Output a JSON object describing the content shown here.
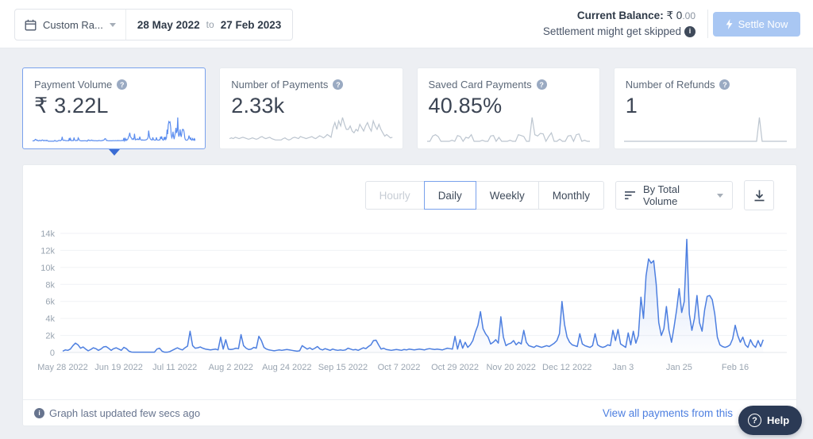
{
  "topbar": {
    "range_preset": "Custom Ra...",
    "date_from": "28 May 2022",
    "to_word": "to",
    "date_to": "27 Feb 2023",
    "current_balance_label": "Current Balance:",
    "balance_whole": "₹ 0",
    "balance_decimals": ".00",
    "settlement_note": "Settlement might get skipped",
    "settle_button": "Settle Now"
  },
  "cards": [
    {
      "label": "Payment Volume",
      "value": "₹ 3.22L",
      "selected": true,
      "spark_color": "#5b8def",
      "spark": "main"
    },
    {
      "label": "Number of Payments",
      "value": "2.33k",
      "selected": false,
      "spark_color": "#bcc5cf",
      "spark": [
        8,
        10,
        8,
        12,
        10,
        8,
        10,
        12,
        10,
        8,
        6,
        8,
        10,
        8,
        6,
        8,
        12,
        14,
        10,
        8,
        10,
        12,
        8,
        6,
        4,
        4,
        4,
        4,
        8,
        10,
        6,
        4,
        6,
        10,
        12,
        10,
        8,
        14,
        12,
        10,
        8,
        10,
        12,
        14,
        10,
        8,
        12,
        16,
        14,
        10,
        14,
        20,
        16,
        12,
        40,
        55,
        35,
        60,
        45,
        70,
        50,
        35,
        35,
        45,
        30,
        25,
        35,
        30,
        50,
        40,
        30,
        45,
        55,
        40,
        30,
        60,
        45,
        35,
        50,
        35,
        25,
        15,
        20,
        15,
        10,
        12
      ]
    },
    {
      "label": "Saved Card Payments",
      "value": "40.85%",
      "selected": false,
      "spark_color": "#bcc5cf",
      "spark": [
        0,
        0,
        20,
        25,
        18,
        0,
        0,
        0,
        0,
        4,
        0,
        22,
        18,
        0,
        15,
        12,
        25,
        0,
        0,
        0,
        4,
        0,
        0,
        20,
        22,
        0,
        15,
        0,
        0,
        0,
        4,
        0,
        0,
        25,
        22,
        18,
        0,
        0,
        90,
        25,
        20,
        30,
        28,
        0,
        18,
        32,
        0,
        0,
        8,
        0,
        0,
        20,
        22,
        0,
        25,
        28,
        0,
        4,
        0,
        0
      ]
    },
    {
      "label": "Number of Refunds",
      "value": "1",
      "selected": false,
      "spark_color": "#bcc5cf",
      "spark": [
        0,
        0,
        0,
        0,
        0,
        0,
        0,
        0,
        0,
        0,
        0,
        0,
        0,
        0,
        0,
        0,
        0,
        0,
        0,
        0,
        0,
        0,
        0,
        0,
        0,
        0,
        0,
        0,
        0,
        0,
        0,
        0,
        0,
        0,
        0,
        0,
        0,
        0,
        0,
        0,
        0,
        0,
        0,
        0,
        0,
        0,
        0,
        0,
        0,
        100,
        0,
        0,
        0,
        0,
        0,
        0,
        0,
        0,
        0,
        0
      ]
    }
  ],
  "controls": {
    "tabs": [
      {
        "label": "Hourly",
        "state": "disabled"
      },
      {
        "label": "Daily",
        "state": "selected"
      },
      {
        "label": "Weekly",
        "state": "normal"
      },
      {
        "label": "Monthly",
        "state": "normal"
      }
    ],
    "sort_dropdown": "By Total Volume"
  },
  "chart_data": {
    "type": "area",
    "title": "",
    "xlabel": "",
    "ylabel": "",
    "granularity": "Daily",
    "grid": true,
    "legend": "none",
    "ylim": [
      0,
      14000
    ],
    "y_tick_labels": [
      "0",
      "2k",
      "4k",
      "6k",
      "8k",
      "10k",
      "12k",
      "14k"
    ],
    "x_tick_labels": [
      "May 28 2022",
      "Jun 19 2022",
      "Jul 11 2022",
      "Aug 2 2022",
      "Aug 24 2022",
      "Sep 15 2022",
      "Oct 7 2022",
      "Oct 29 2022",
      "Nov 20 2022",
      "Dec 12 2022",
      "Jan 3",
      "Jan 25",
      "Feb 16"
    ],
    "x_tick_interval_days": 22,
    "line_color": "#4d7fe0",
    "series": [
      {
        "name": "Payment Volume",
        "values": [
          150,
          300,
          250,
          400,
          800,
          1100,
          900,
          500,
          650,
          400,
          200,
          350,
          550,
          450,
          250,
          400,
          650,
          700,
          500,
          250,
          450,
          550,
          400,
          250,
          600,
          450,
          150,
          50,
          30,
          30,
          30,
          30,
          30,
          30,
          30,
          30,
          30,
          400,
          500,
          150,
          30,
          30,
          100,
          250,
          400,
          550,
          400,
          300,
          550,
          750,
          2500,
          800,
          500,
          550,
          650,
          500,
          400,
          350,
          300,
          350,
          400,
          300,
          1800,
          400,
          1500,
          400,
          350,
          400,
          500,
          450,
          2100,
          800,
          500,
          350,
          400,
          600,
          500,
          1900,
          1400,
          600,
          400,
          300,
          250,
          200,
          250,
          300,
          250,
          300,
          350,
          300,
          250,
          200,
          150,
          200,
          800,
          600,
          400,
          550,
          350,
          500,
          700,
          400,
          300,
          450,
          350,
          250,
          400,
          300,
          250,
          300,
          250,
          300,
          500,
          400,
          300,
          350,
          250,
          400,
          550,
          450,
          700,
          900,
          1400,
          1450,
          900,
          400,
          500,
          350,
          300,
          250,
          300,
          350,
          300,
          250,
          350,
          300,
          400,
          350,
          300,
          350,
          400,
          350,
          300,
          400,
          450,
          400,
          350,
          400,
          350,
          300,
          400,
          500,
          450,
          400,
          1900,
          400,
          1500,
          500,
          1200,
          600,
          900,
          1400,
          2400,
          3200,
          4800,
          2800,
          2200,
          1800,
          1000,
          1200,
          1500,
          1100,
          4200,
          1800,
          800,
          1000,
          1100,
          1400,
          900,
          1200,
          1000,
          2600,
          1200,
          800,
          700,
          600,
          800,
          700,
          600,
          700,
          800,
          700,
          900,
          1100,
          1400,
          2200,
          6000,
          3300,
          1800,
          1200,
          900,
          800,
          700,
          2200,
          1000,
          800,
          700,
          600,
          800,
          2200,
          900,
          700,
          600,
          700,
          900,
          800,
          2600,
          1400,
          2700,
          1000,
          800,
          600,
          2300,
          900,
          2500,
          1100,
          2000,
          6500,
          4000,
          9000,
          11000,
          10500,
          10800,
          8000,
          3500,
          2000,
          2800,
          5400,
          2600,
          1200,
          3000,
          5000,
          7500,
          4700,
          6000,
          13300,
          4500,
          2600,
          4000,
          6700,
          3500,
          2500,
          5000,
          6600,
          6700,
          6200,
          4500,
          1800,
          900,
          700,
          600,
          700,
          900,
          1600,
          3200,
          2000,
          1200,
          1800,
          900,
          600,
          1500,
          900,
          600,
          1400,
          700,
          1500
        ]
      }
    ]
  },
  "footer": {
    "updated_text": "Graph last updated few secs ago",
    "link_text": "View all payments from this"
  },
  "help_button": {
    "label": "Help"
  },
  "colors": {
    "accent": "#4d7fe0",
    "chart_line": "#4d7fe0",
    "spark_muted": "#bcc5cf",
    "spark_active": "#5b8def",
    "settle_button_bg": "#a9c7f3",
    "selected_card_border": "#79a1ec",
    "help_button_bg": "#2b3a55",
    "link": "#4d7fe0",
    "page_bg": "#edeff3"
  },
  "icons": {
    "calendar-icon": "calendar",
    "caret-down-icon": "▾",
    "info-icon": "i",
    "bolt-icon": "lightning-bolt",
    "question-icon": "?",
    "sort-icon": "sort-lines",
    "download-icon": "download-arrow",
    "help-circle-icon": "?"
  }
}
